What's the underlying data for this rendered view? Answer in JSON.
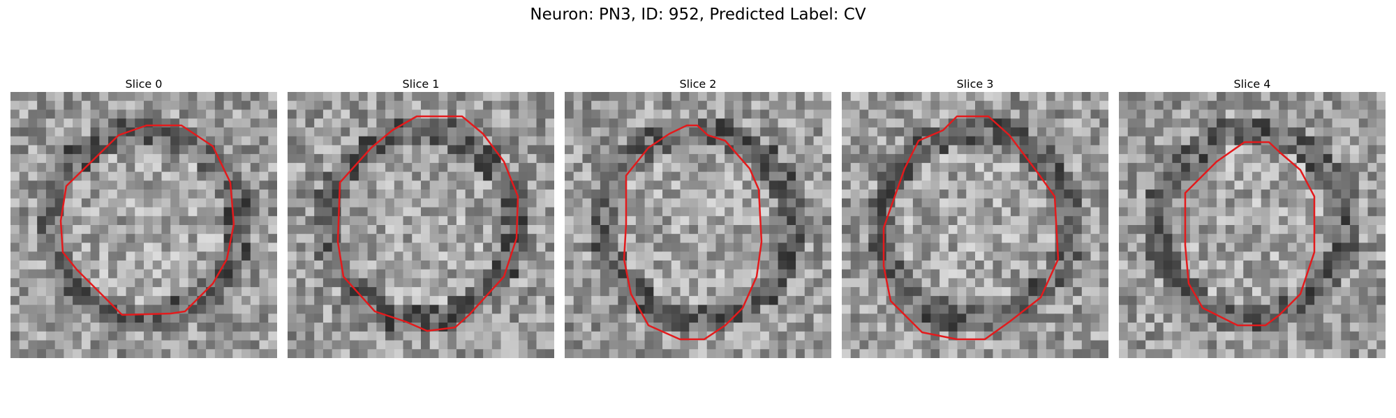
{
  "figure": {
    "title": "Neuron: PN3, ID: 952, Predicted Label: CV"
  },
  "panels": [
    {
      "title": "Slice 0",
      "seed": 11,
      "contour_color": "#e31a1c"
    },
    {
      "title": "Slice 1",
      "seed": 23,
      "contour_color": "#e31a1c"
    },
    {
      "title": "Slice 2",
      "seed": 37,
      "contour_color": "#e31a1c"
    },
    {
      "title": "Slice 3",
      "seed": 41,
      "contour_color": "#e31a1c"
    },
    {
      "title": "Slice 4",
      "seed": 53,
      "contour_color": "#e31a1c"
    }
  ]
}
